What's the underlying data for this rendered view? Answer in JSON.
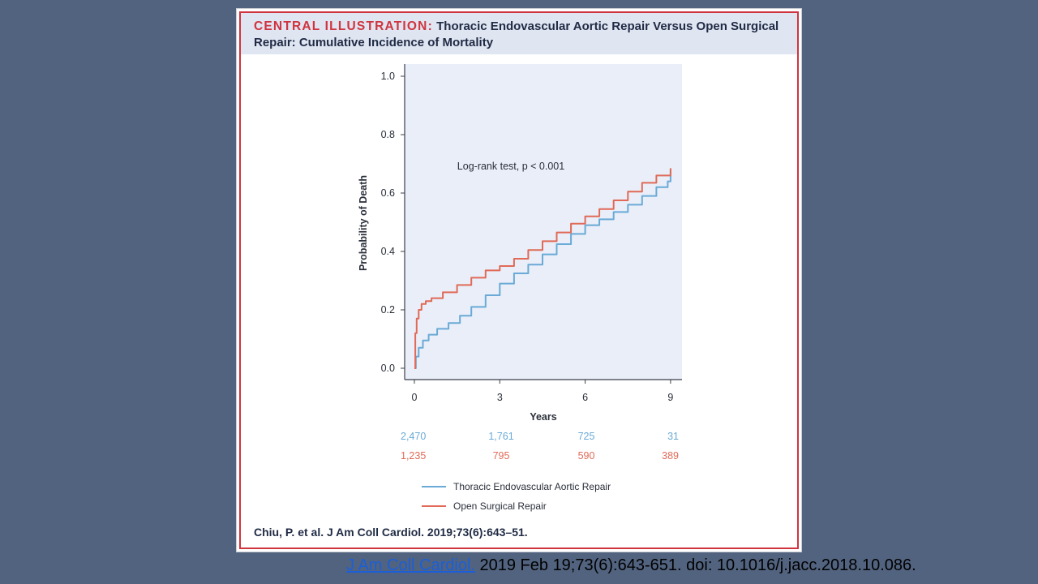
{
  "header": {
    "lead": "CENTRAL ILLUSTRATION:",
    "title": "Thoracic Endovascular Aortic Repair Versus Open Surgical Repair: Cumulative Incidence of Mortality"
  },
  "citation": "Chiu, P. et al. J Am Coll Cardiol. 2019;73(6):643–51.",
  "source": {
    "link_text": "J Am Coll Cardiol.",
    "rest": " 2019 Feb 19;73(6):643-651.  doi: 10.1016/j.jacc.2018.10.086."
  },
  "colors": {
    "tevar": "#6aaad6",
    "open": "#e06a57",
    "plot_bg": "#e9eef8",
    "frame": "#d0343f"
  },
  "chart_data": {
    "type": "line",
    "xlabel": "Years",
    "ylabel": "Probability of Death",
    "xlim": [
      0,
      9.4
    ],
    "ylim": [
      0,
      1.03
    ],
    "xticks": [
      "0",
      "3",
      "6",
      "9"
    ],
    "yticks": [
      "0.0",
      "0.2",
      "0.4",
      "0.6",
      "0.8",
      "1.0"
    ],
    "annotation": "Log-rank test, p < 0.001",
    "series": [
      {
        "name": "Thoracic Endovascular Aortic Repair",
        "at_risk": [
          "2,470",
          "1,761",
          "725",
          "31"
        ],
        "x": [
          0,
          0.05,
          0.15,
          0.3,
          0.5,
          0.8,
          1.2,
          1.6,
          2.0,
          2.5,
          3.0,
          3.5,
          4.0,
          4.5,
          5.0,
          5.5,
          6.0,
          6.5,
          7.0,
          7.5,
          8.0,
          8.5,
          8.9,
          9.0
        ],
        "y": [
          0,
          0.04,
          0.07,
          0.095,
          0.115,
          0.135,
          0.155,
          0.18,
          0.21,
          0.25,
          0.29,
          0.325,
          0.355,
          0.39,
          0.425,
          0.46,
          0.49,
          0.51,
          0.535,
          0.56,
          0.59,
          0.62,
          0.64,
          0.68
        ]
      },
      {
        "name": "Open Surgical Repair",
        "at_risk": [
          "1,235",
          "795",
          "590",
          "389"
        ],
        "x": [
          0,
          0.03,
          0.08,
          0.15,
          0.25,
          0.4,
          0.6,
          1.0,
          1.5,
          2.0,
          2.5,
          3.0,
          3.5,
          4.0,
          4.5,
          5.0,
          5.5,
          6.0,
          6.5,
          7.0,
          7.5,
          8.0,
          8.5,
          9.0
        ],
        "y": [
          0,
          0.12,
          0.17,
          0.2,
          0.22,
          0.23,
          0.24,
          0.26,
          0.285,
          0.31,
          0.335,
          0.35,
          0.375,
          0.405,
          0.435,
          0.465,
          0.495,
          0.52,
          0.545,
          0.575,
          0.605,
          0.635,
          0.66,
          0.685
        ]
      }
    ]
  }
}
